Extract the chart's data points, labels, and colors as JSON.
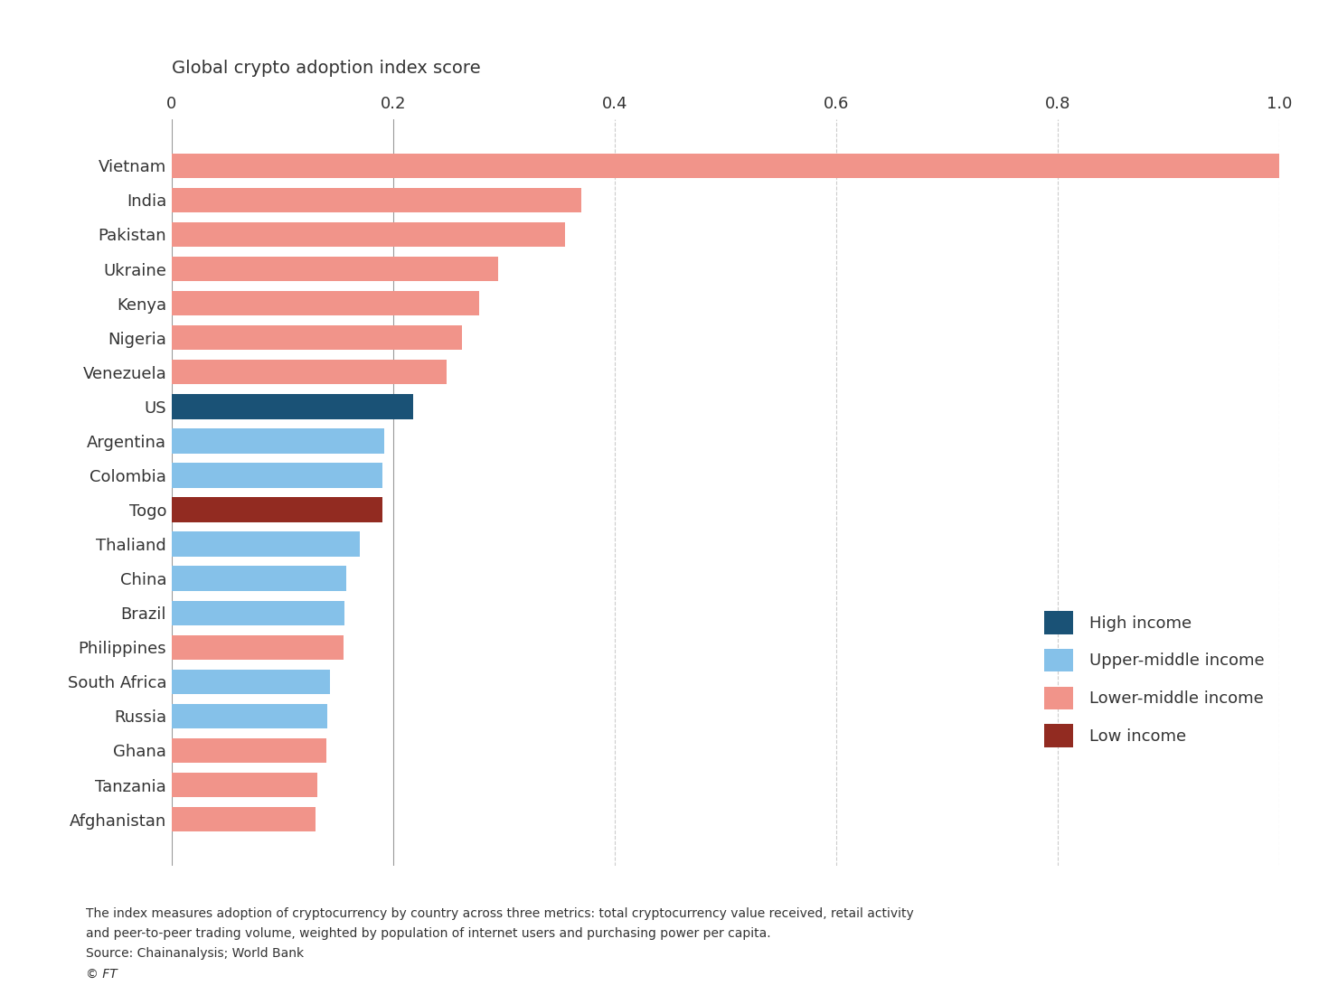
{
  "subtitle": "Global crypto adoption index score",
  "countries": [
    "Vietnam",
    "India",
    "Pakistan",
    "Ukraine",
    "Kenya",
    "Nigeria",
    "Venezuela",
    "US",
    "Argentina",
    "Colombia",
    "Togo",
    "Thaliand",
    "China",
    "Brazil",
    "Philippines",
    "South Africa",
    "Russia",
    "Ghana",
    "Tanzania",
    "Afghanistan"
  ],
  "values": [
    1.0,
    0.37,
    0.355,
    0.295,
    0.278,
    0.262,
    0.248,
    0.218,
    0.192,
    0.19,
    0.19,
    0.17,
    0.158,
    0.156,
    0.155,
    0.143,
    0.141,
    0.14,
    0.132,
    0.13
  ],
  "income_levels": [
    "lower-middle",
    "lower-middle",
    "lower-middle",
    "lower-middle",
    "lower-middle",
    "lower-middle",
    "lower-middle",
    "high",
    "upper-middle",
    "upper-middle",
    "low",
    "upper-middle",
    "upper-middle",
    "upper-middle",
    "lower-middle",
    "upper-middle",
    "upper-middle",
    "lower-middle",
    "lower-middle",
    "lower-middle"
  ],
  "colors": {
    "high": "#1a5276",
    "upper-middle": "#85C1E9",
    "lower-middle": "#F1948A",
    "low": "#922B21"
  },
  "legend_order": [
    "high",
    "upper-middle",
    "lower-middle",
    "low"
  ],
  "legend_labels": {
    "high": "High income",
    "upper-middle": "Upper-middle income",
    "lower-middle": "Lower-middle income",
    "low": "Low income"
  },
  "xlim": [
    0,
    1.0
  ],
  "xticks": [
    0,
    0.2,
    0.4,
    0.6,
    0.8,
    1.0
  ],
  "xtick_labels": [
    "0",
    "0.2",
    "0.4",
    "0.6",
    "0.8",
    "1.0"
  ],
  "solid_vlines": [
    0,
    0.2
  ],
  "dashed_vlines": [
    0.4,
    0.6,
    0.8,
    1.0
  ],
  "footnote_line1": "The index measures adoption of cryptocurrency by country across three metrics: total cryptocurrency value received, retail activity",
  "footnote_line2": "and peer-to-peer trading volume, weighted by population of internet users and purchasing power per capita.",
  "footnote_line3": "Source: Chainanalysis; World Bank",
  "footnote_line4": "© FT",
  "background_color": "#ffffff",
  "text_color": "#333333",
  "bar_height": 0.72
}
